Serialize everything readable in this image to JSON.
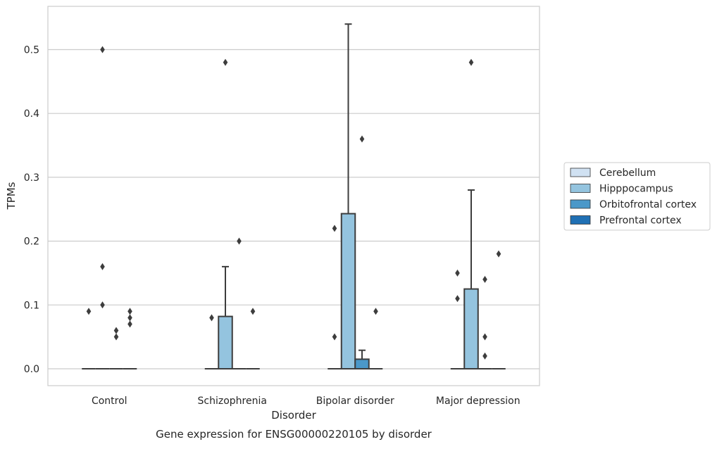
{
  "chart_data": {
    "type": "box",
    "title": "Gene expression for ENSG00000220105 by disorder",
    "xlabel": "Disorder",
    "ylabel": "TPMs",
    "ylim": [
      -0.027,
      0.555
    ],
    "yticks": [
      "0.0",
      "0.1",
      "0.2",
      "0.3",
      "0.4",
      "0.5"
    ],
    "grid": "horizontal",
    "legend_position": "right",
    "categories": [
      "Control",
      "Schizophrenia",
      "Bipolar disorder",
      "Major depression"
    ],
    "series": [
      {
        "name": "Cerebellum",
        "color": "#d0e1f2",
        "boxes": [
          {
            "q1": 0,
            "median": 0,
            "q3": 0,
            "whisker_low": 0,
            "whisker_high": 0,
            "outliers": [
              0.09
            ]
          },
          {
            "q1": 0,
            "median": 0,
            "q3": 0,
            "whisker_low": 0,
            "whisker_high": 0,
            "outliers": [
              0.08
            ]
          },
          {
            "q1": 0,
            "median": 0,
            "q3": 0,
            "whisker_low": 0,
            "whisker_high": 0,
            "outliers": [
              0.22,
              0.05
            ]
          },
          {
            "q1": 0,
            "median": 0,
            "q3": 0,
            "whisker_low": 0,
            "whisker_high": 0,
            "outliers": [
              0.15,
              0.11
            ]
          }
        ]
      },
      {
        "name": "Hipppocampus",
        "color": "#94c4df",
        "boxes": [
          {
            "q1": 0,
            "median": 0,
            "q3": 0,
            "whisker_low": 0,
            "whisker_high": 0,
            "outliers": [
              0.5,
              0.16,
              0.1
            ]
          },
          {
            "q1": 0,
            "median": 0,
            "q3": 0.082,
            "whisker_low": 0,
            "whisker_high": 0.16,
            "outliers": [
              0.48
            ]
          },
          {
            "q1": 0,
            "median": 0,
            "q3": 0.243,
            "whisker_low": 0,
            "whisker_high": 0.54,
            "outliers": []
          },
          {
            "q1": 0,
            "median": 0,
            "q3": 0.125,
            "whisker_low": 0,
            "whisker_high": 0.28,
            "outliers": [
              0.48
            ]
          }
        ]
      },
      {
        "name": "Orbitofrontal cortex",
        "color": "#4a98c9",
        "boxes": [
          {
            "q1": 0,
            "median": 0,
            "q3": 0,
            "whisker_low": 0,
            "whisker_high": 0,
            "outliers": [
              0.06,
              0.05
            ]
          },
          {
            "q1": 0,
            "median": 0,
            "q3": 0,
            "whisker_low": 0,
            "whisker_high": 0,
            "outliers": [
              0.2
            ]
          },
          {
            "q1": 0,
            "median": 0,
            "q3": 0.015,
            "whisker_low": 0,
            "whisker_high": 0.029,
            "outliers": [
              0.36
            ]
          },
          {
            "q1": 0,
            "median": 0,
            "q3": 0,
            "whisker_low": 0,
            "whisker_high": 0,
            "outliers": [
              0.14,
              0.05,
              0.02
            ]
          }
        ]
      },
      {
        "name": "Prefrontal cortex",
        "color": "#2070b4",
        "boxes": [
          {
            "q1": 0,
            "median": 0,
            "q3": 0,
            "whisker_low": 0,
            "whisker_high": 0,
            "outliers": [
              0.09,
              0.08,
              0.07
            ]
          },
          {
            "q1": 0,
            "median": 0,
            "q3": 0,
            "whisker_low": 0,
            "whisker_high": 0,
            "outliers": [
              0.09
            ]
          },
          {
            "q1": 0,
            "median": 0,
            "q3": 0,
            "whisker_low": 0,
            "whisker_high": 0,
            "outliers": [
              0.09
            ]
          },
          {
            "q1": 0,
            "median": 0,
            "q3": 0,
            "whisker_low": 0,
            "whisker_high": 0,
            "outliers": [
              0.18
            ]
          }
        ]
      }
    ]
  }
}
